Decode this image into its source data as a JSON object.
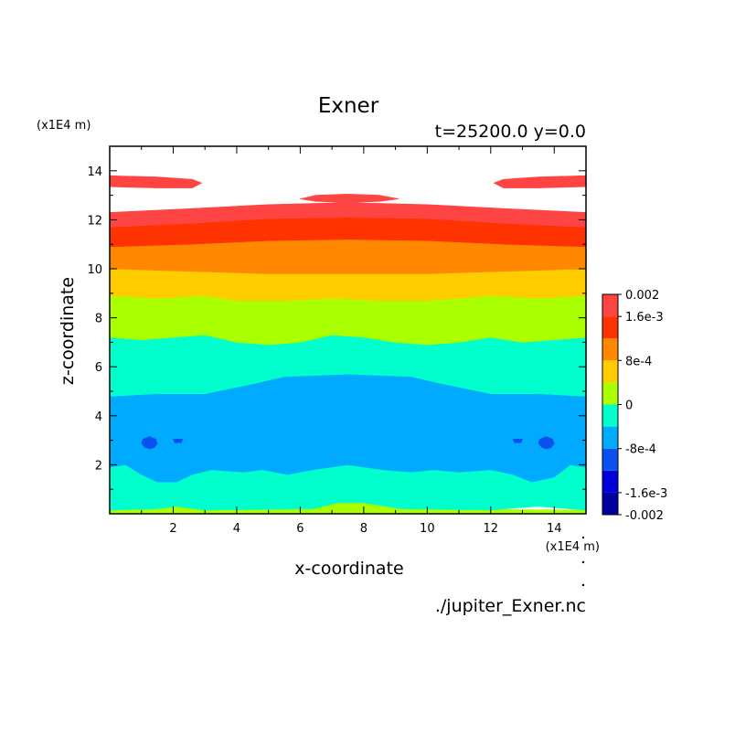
{
  "chart_data": {
    "type": "contour",
    "title": "Exner",
    "subtitle": "t=25200.0 y=0.0",
    "xlabel": "x-coordinate",
    "ylabel": "z-coordinate",
    "x_unit": "(x1E4 m)",
    "y_unit": "(x1E4 m)",
    "xlim": [
      0,
      15
    ],
    "ylim": [
      0,
      15
    ],
    "xticks": [
      2,
      4,
      6,
      8,
      10,
      12,
      14
    ],
    "yticks": [
      2,
      4,
      6,
      8,
      10,
      12,
      14
    ],
    "source_file": "./jupiter_Exner.nc",
    "colorbar": {
      "min": -0.002,
      "max": 0.002,
      "levels": [
        -0.002,
        -0.0016,
        -0.0012,
        -0.0008,
        -0.0004,
        0,
        0.0004,
        0.0008,
        0.0012,
        0.0016,
        0.002
      ],
      "colors": [
        "#0000a0",
        "#0000dc",
        "#0a50f0",
        "#00aaff",
        "#00ffcc",
        "#aaff00",
        "#ffcc00",
        "#ff8800",
        "#ff3300",
        "#ff4444"
      ],
      "tick_labels": [
        {
          "value": 0.002,
          "text": "0.002"
        },
        {
          "value": 0.0016,
          "text": "1.6e-3"
        },
        {
          "value": 0.0008,
          "text": "8e-4"
        },
        {
          "value": 0,
          "text": "0"
        },
        {
          "value": -0.0008,
          "text": "-8e-4"
        },
        {
          "value": -0.0016,
          "text": "-1.6e-3"
        },
        {
          "value": -0.002,
          "text": "-0.002"
        }
      ]
    },
    "bands": [
      {
        "name": "band-yellowgreen-bottom",
        "color": "#aaff00",
        "points": [
          [
            0,
            0
          ],
          [
            15,
            0
          ],
          [
            15,
            0.15
          ],
          [
            9.2,
            0.2
          ],
          [
            8,
            0.45
          ],
          [
            7.2,
            0.45
          ],
          [
            6.4,
            0.2
          ],
          [
            3,
            0.15
          ],
          [
            2.1,
            0.3
          ],
          [
            1.5,
            0.2
          ],
          [
            0,
            0.15
          ]
        ]
      },
      {
        "name": "band-cyan-lower",
        "color": "#00ffcc",
        "points": [
          [
            0,
            0.15
          ],
          [
            1.5,
            0.2
          ],
          [
            2.1,
            0.3
          ],
          [
            3,
            0.15
          ],
          [
            6.4,
            0.2
          ],
          [
            7.2,
            0.45
          ],
          [
            8,
            0.45
          ],
          [
            9.2,
            0.2
          ],
          [
            12,
            0.15
          ],
          [
            12.9,
            0.25
          ],
          [
            13.5,
            0.3
          ],
          [
            15,
            0.15
          ],
          [
            15,
            1.9
          ],
          [
            14.5,
            2.0
          ],
          [
            14,
            1.5
          ],
          [
            13.3,
            1.3
          ],
          [
            12.7,
            1.6
          ],
          [
            12,
            1.8
          ],
          [
            11,
            1.7
          ],
          [
            10.2,
            1.8
          ],
          [
            9.5,
            1.7
          ],
          [
            8.6,
            1.8
          ],
          [
            7.5,
            2.0
          ],
          [
            6.4,
            1.8
          ],
          [
            5.6,
            1.6
          ],
          [
            4.8,
            1.8
          ],
          [
            4.2,
            1.7
          ],
          [
            3.2,
            1.8
          ],
          [
            2.6,
            1.6
          ],
          [
            2.1,
            1.3
          ],
          [
            1.5,
            1.3
          ],
          [
            1.0,
            1.6
          ],
          [
            0.5,
            2.0
          ],
          [
            0,
            1.9
          ]
        ]
      },
      {
        "name": "band-lightblue",
        "color": "#00aaff",
        "points": [
          [
            0,
            1.9
          ],
          [
            0.5,
            2.0
          ],
          [
            1.0,
            1.6
          ],
          [
            1.5,
            1.3
          ],
          [
            2.1,
            1.3
          ],
          [
            2.6,
            1.6
          ],
          [
            3.2,
            1.8
          ],
          [
            4.2,
            1.7
          ],
          [
            4.8,
            1.8
          ],
          [
            5.6,
            1.6
          ],
          [
            6.4,
            1.8
          ],
          [
            7.5,
            2.0
          ],
          [
            8.6,
            1.8
          ],
          [
            9.5,
            1.7
          ],
          [
            10.2,
            1.8
          ],
          [
            11,
            1.7
          ],
          [
            12,
            1.8
          ],
          [
            12.7,
            1.6
          ],
          [
            13.3,
            1.3
          ],
          [
            14,
            1.5
          ],
          [
            14.5,
            2.0
          ],
          [
            15,
            1.9
          ],
          [
            15,
            4.8
          ],
          [
            13.5,
            4.9
          ],
          [
            12,
            4.9
          ],
          [
            10.5,
            5.3
          ],
          [
            9.5,
            5.6
          ],
          [
            7.5,
            5.7
          ],
          [
            5.5,
            5.6
          ],
          [
            4.5,
            5.3
          ],
          [
            3,
            4.9
          ],
          [
            1.5,
            4.9
          ],
          [
            0,
            4.8
          ]
        ]
      },
      {
        "name": "band-cyan-upper",
        "color": "#00ffcc",
        "points": [
          [
            0,
            4.8
          ],
          [
            1.5,
            4.9
          ],
          [
            3,
            4.9
          ],
          [
            4.5,
            5.3
          ],
          [
            5.5,
            5.6
          ],
          [
            7.5,
            5.7
          ],
          [
            9.5,
            5.6
          ],
          [
            10.5,
            5.3
          ],
          [
            12,
            4.9
          ],
          [
            13.5,
            4.9
          ],
          [
            15,
            4.8
          ],
          [
            15,
            7.2
          ],
          [
            14,
            7.1
          ],
          [
            13,
            7.0
          ],
          [
            12,
            7.2
          ],
          [
            11,
            7.0
          ],
          [
            10,
            6.9
          ],
          [
            9,
            7.0
          ],
          [
            8,
            7.2
          ],
          [
            7,
            7.3
          ],
          [
            6,
            7.0
          ],
          [
            5,
            6.9
          ],
          [
            4,
            7.0
          ],
          [
            3,
            7.3
          ],
          [
            2,
            7.2
          ],
          [
            1,
            7.1
          ],
          [
            0,
            7.2
          ]
        ]
      },
      {
        "name": "band-yellowgreen",
        "color": "#aaff00",
        "points": [
          [
            0,
            7.2
          ],
          [
            1,
            7.1
          ],
          [
            2,
            7.2
          ],
          [
            3,
            7.3
          ],
          [
            4,
            7.0
          ],
          [
            5,
            6.9
          ],
          [
            6,
            7.0
          ],
          [
            7,
            7.3
          ],
          [
            8,
            7.2
          ],
          [
            9,
            7.0
          ],
          [
            10,
            6.9
          ],
          [
            11,
            7.0
          ],
          [
            12,
            7.2
          ],
          [
            13,
            7.0
          ],
          [
            14,
            7.1
          ],
          [
            15,
            7.2
          ],
          [
            15,
            8.9
          ],
          [
            13.5,
            8.8
          ],
          [
            12,
            8.9
          ],
          [
            10,
            8.7
          ],
          [
            8.5,
            8.7
          ],
          [
            7,
            8.8
          ],
          [
            5.5,
            8.7
          ],
          [
            4,
            8.7
          ],
          [
            3,
            8.9
          ],
          [
            1.5,
            8.8
          ],
          [
            0,
            8.9
          ]
        ]
      },
      {
        "name": "band-gold",
        "color": "#ffcc00",
        "points": [
          [
            0,
            8.9
          ],
          [
            1.5,
            8.8
          ],
          [
            3,
            8.9
          ],
          [
            4,
            8.7
          ],
          [
            5.5,
            8.7
          ],
          [
            7,
            8.8
          ],
          [
            8.5,
            8.7
          ],
          [
            10,
            8.7
          ],
          [
            12,
            8.9
          ],
          [
            13.5,
            8.8
          ],
          [
            15,
            8.9
          ],
          [
            15,
            10.0
          ],
          [
            12.5,
            9.9
          ],
          [
            10,
            9.8
          ],
          [
            7.5,
            9.8
          ],
          [
            5,
            9.8
          ],
          [
            2.5,
            9.9
          ],
          [
            0,
            10.0
          ]
        ]
      },
      {
        "name": "band-orange",
        "color": "#ff8800",
        "points": [
          [
            0,
            10.0
          ],
          [
            2.5,
            9.9
          ],
          [
            5,
            9.8
          ],
          [
            7.5,
            9.8
          ],
          [
            10,
            9.8
          ],
          [
            12.5,
            9.9
          ],
          [
            15,
            10.0
          ],
          [
            15,
            10.9
          ],
          [
            12.5,
            11.0
          ],
          [
            10,
            11.15
          ],
          [
            7.5,
            11.2
          ],
          [
            5,
            11.15
          ],
          [
            2.5,
            11.0
          ],
          [
            0,
            10.9
          ]
        ]
      },
      {
        "name": "band-redorange",
        "color": "#ff3300",
        "points": [
          [
            0,
            10.9
          ],
          [
            2.5,
            11.0
          ],
          [
            5,
            11.15
          ],
          [
            7.5,
            11.2
          ],
          [
            10,
            11.15
          ],
          [
            12.5,
            11.0
          ],
          [
            15,
            10.9
          ],
          [
            15,
            11.7
          ],
          [
            12.5,
            11.85
          ],
          [
            10,
            12.05
          ],
          [
            7.5,
            12.1
          ],
          [
            5,
            12.05
          ],
          [
            2.5,
            11.85
          ],
          [
            0,
            11.7
          ]
        ]
      },
      {
        "name": "band-red",
        "color": "#ff4444",
        "points": [
          [
            0,
            11.7
          ],
          [
            2.5,
            11.85
          ],
          [
            5,
            12.05
          ],
          [
            7.5,
            12.1
          ],
          [
            10,
            12.05
          ],
          [
            12.5,
            11.85
          ],
          [
            15,
            11.7
          ],
          [
            15,
            12.3
          ],
          [
            12.5,
            12.45
          ],
          [
            10,
            12.62
          ],
          [
            7.5,
            12.7
          ],
          [
            5,
            12.62
          ],
          [
            2.5,
            12.45
          ],
          [
            0,
            12.3
          ]
        ]
      },
      {
        "name": "blob-red-left",
        "color": "#ff4444",
        "points": [
          [
            0,
            13.35
          ],
          [
            1.5,
            13.3
          ],
          [
            2.6,
            13.3
          ],
          [
            2.9,
            13.5
          ],
          [
            2.6,
            13.65
          ],
          [
            1.5,
            13.75
          ],
          [
            0,
            13.8
          ]
        ]
      },
      {
        "name": "blob-red-right",
        "color": "#ff4444",
        "points": [
          [
            15,
            13.35
          ],
          [
            13.5,
            13.3
          ],
          [
            12.4,
            13.3
          ],
          [
            12.1,
            13.5
          ],
          [
            12.4,
            13.65
          ],
          [
            13.5,
            13.75
          ],
          [
            15,
            13.8
          ]
        ]
      },
      {
        "name": "blob-red-center",
        "color": "#ff4444",
        "points": [
          [
            6.0,
            12.85
          ],
          [
            6.5,
            12.75
          ],
          [
            7.5,
            12.7
          ],
          [
            8.5,
            12.75
          ],
          [
            9.1,
            12.85
          ],
          [
            8.5,
            13.0
          ],
          [
            7.5,
            13.05
          ],
          [
            6.5,
            13.0
          ]
        ]
      },
      {
        "name": "blob-blue-left",
        "color": "#0a50f0",
        "points": [
          [
            1.25,
            3.15
          ],
          [
            1.45,
            3.05
          ],
          [
            1.5,
            2.85
          ],
          [
            1.4,
            2.7
          ],
          [
            1.25,
            2.65
          ],
          [
            1.1,
            2.72
          ],
          [
            1.0,
            2.88
          ],
          [
            1.05,
            3.05
          ]
        ]
      },
      {
        "name": "blob-blue-right",
        "color": "#0a50f0",
        "points": [
          [
            13.75,
            3.15
          ],
          [
            13.95,
            3.05
          ],
          [
            14.0,
            2.85
          ],
          [
            13.9,
            2.7
          ],
          [
            13.75,
            2.65
          ],
          [
            13.6,
            2.72
          ],
          [
            13.5,
            2.88
          ],
          [
            13.55,
            3.05
          ]
        ]
      },
      {
        "name": "blob-blue-small-left",
        "color": "#0a50f0",
        "points": [
          [
            2.0,
            3.05
          ],
          [
            2.3,
            3.05
          ],
          [
            2.25,
            2.9
          ],
          [
            2.05,
            2.9
          ]
        ]
      },
      {
        "name": "blob-blue-small-right",
        "color": "#0a50f0",
        "points": [
          [
            12.7,
            3.05
          ],
          [
            13.0,
            3.05
          ],
          [
            12.95,
            2.9
          ],
          [
            12.75,
            2.9
          ]
        ]
      }
    ]
  }
}
